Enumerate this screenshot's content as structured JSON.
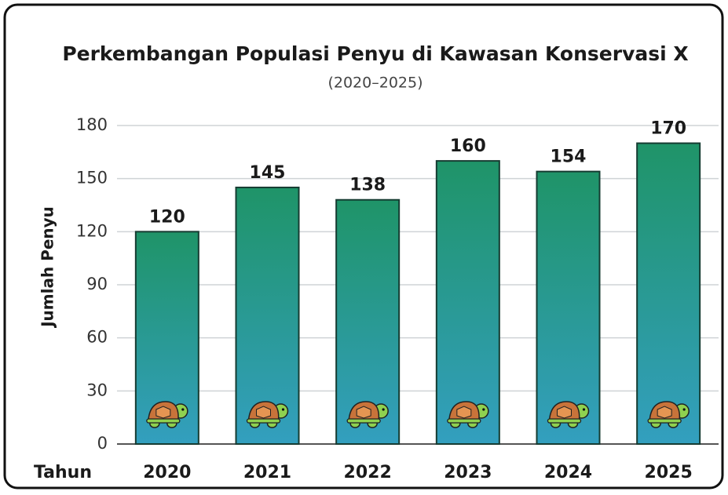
{
  "chart_data": {
    "type": "bar",
    "title": "Perkembangan Populasi Penyu di Kawasan Konservasi X",
    "subtitle": "(2020–2025)",
    "y_label": "Jumlah Penyu",
    "x_label": "Tahun",
    "categories": [
      "2020",
      "2021",
      "2022",
      "2023",
      "2024",
      "2025"
    ],
    "values": [
      120,
      145,
      138,
      160,
      154,
      170
    ],
    "ylim": [
      0,
      180
    ],
    "yticks": [
      0,
      30,
      60,
      90,
      120,
      150,
      180
    ],
    "grid": true,
    "color_top": "#1f9468",
    "color_bottom": "#339fbf"
  }
}
